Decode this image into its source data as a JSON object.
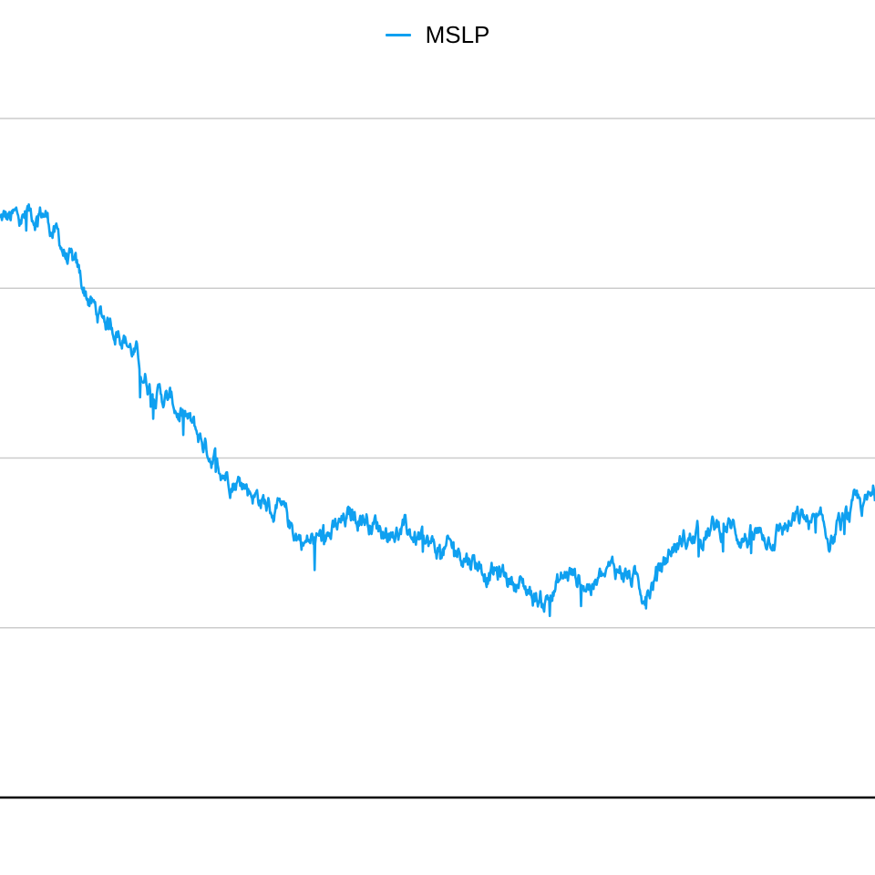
{
  "colors": {
    "series": "#0fa0f0",
    "grid": "#cccccc",
    "axis": "#000000",
    "background": "#ffffff"
  },
  "legend": {
    "position": "top-center",
    "items": [
      {
        "label": "MSLP"
      }
    ]
  },
  "chart_data": {
    "type": "line",
    "title": "",
    "xlabel": "",
    "ylabel": "",
    "grid": "horizontal",
    "ylim": [
      0,
      4
    ],
    "series": [
      {
        "name": "MSLP",
        "x_start": 0,
        "x_end": 1,
        "trend": [
          [
            0.0,
            3.4
          ],
          [
            0.02,
            3.4
          ],
          [
            0.05,
            3.45
          ],
          [
            0.08,
            3.15
          ],
          [
            0.11,
            2.85
          ],
          [
            0.14,
            2.75
          ],
          [
            0.17,
            2.45
          ],
          [
            0.2,
            2.3
          ],
          [
            0.23,
            2.1
          ],
          [
            0.26,
            1.92
          ],
          [
            0.29,
            1.8
          ],
          [
            0.32,
            1.65
          ],
          [
            0.35,
            1.5
          ],
          [
            0.38,
            1.55
          ],
          [
            0.41,
            1.68
          ],
          [
            0.44,
            1.58
          ],
          [
            0.47,
            1.55
          ],
          [
            0.5,
            1.45
          ],
          [
            0.53,
            1.45
          ],
          [
            0.56,
            1.33
          ],
          [
            0.59,
            1.28
          ],
          [
            0.62,
            1.15
          ],
          [
            0.65,
            1.32
          ],
          [
            0.68,
            1.25
          ],
          [
            0.71,
            1.35
          ],
          [
            0.74,
            1.2
          ],
          [
            0.77,
            1.48
          ],
          [
            0.8,
            1.55
          ],
          [
            0.83,
            1.6
          ],
          [
            0.86,
            1.52
          ],
          [
            0.89,
            1.58
          ],
          [
            0.92,
            1.63
          ],
          [
            0.95,
            1.52
          ],
          [
            0.98,
            1.7
          ],
          [
            1.0,
            1.75
          ]
        ],
        "noise_amplitude": 0.06,
        "points": 1400
      }
    ]
  }
}
